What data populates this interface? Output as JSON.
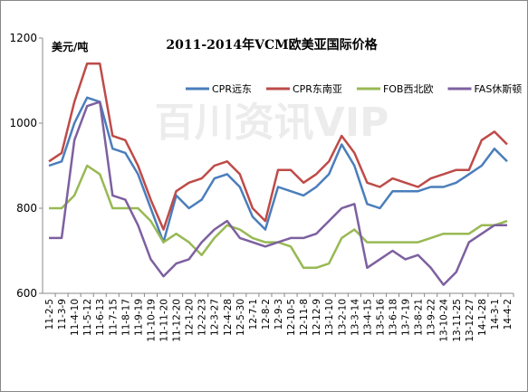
{
  "chart_data": {
    "type": "line",
    "title": "2011-2014年VCM欧美亚国际价格",
    "y_label": "美元/吨",
    "watermark": "百川资讯VIP",
    "categories": [
      "11-2-5",
      "11-3-9",
      "11-4-10",
      "11-5-12",
      "11-6-13",
      "11-7-15",
      "11-8-17",
      "11-9-19",
      "11-10-19",
      "11-11-20",
      "11-12-20",
      "12-1-20",
      "12-2-23",
      "12-3-27",
      "12-4-28",
      "12-5-30",
      "12-7-1",
      "12-8-2",
      "12-9-3",
      "12-10-5",
      "12-11-8",
      "12-12-9",
      "13-1-10",
      "13-2-10",
      "13-3-14",
      "13-4-15",
      "13-5-16",
      "13-6-18",
      "13-7-19",
      "13-8-21",
      "13-9-22",
      "13-10-24",
      "13-11-25",
      "13-12-27",
      "14-1-28",
      "14-3-1",
      "14-4-2"
    ],
    "series": [
      {
        "name": "CPR远东",
        "color": "#4a7ebb",
        "values": [
          900,
          910,
          1000,
          1060,
          1050,
          940,
          930,
          880,
          800,
          720,
          830,
          800,
          820,
          870,
          880,
          850,
          780,
          750,
          850,
          840,
          830,
          850,
          880,
          950,
          900,
          810,
          800,
          840,
          840,
          840,
          850,
          850,
          860,
          880,
          900,
          940,
          910
        ]
      },
      {
        "name": "CPR东南亚",
        "color": "#be4b48",
        "values": [
          910,
          930,
          1050,
          1140,
          1140,
          970,
          960,
          900,
          820,
          750,
          840,
          860,
          870,
          900,
          910,
          880,
          800,
          770,
          890,
          890,
          860,
          880,
          910,
          970,
          930,
          860,
          850,
          870,
          860,
          850,
          870,
          880,
          890,
          890,
          960,
          980,
          950
        ]
      },
      {
        "name": "FOB西北欧",
        "color": "#98b954",
        "values": [
          800,
          800,
          830,
          900,
          880,
          800,
          800,
          800,
          770,
          720,
          740,
          720,
          690,
          730,
          760,
          750,
          730,
          720,
          720,
          710,
          660,
          660,
          670,
          730,
          750,
          720,
          720,
          720,
          720,
          720,
          730,
          740,
          740,
          740,
          760,
          760,
          770
        ]
      },
      {
        "name": "FAS休斯顿",
        "color": "#7d60a0",
        "values": [
          730,
          730,
          960,
          1040,
          1050,
          830,
          820,
          760,
          680,
          640,
          670,
          680,
          720,
          750,
          770,
          730,
          720,
          710,
          720,
          730,
          730,
          740,
          770,
          800,
          810,
          660,
          680,
          700,
          680,
          690,
          660,
          620,
          650,
          720,
          740,
          760,
          760
        ]
      }
    ],
    "ylim": [
      600,
      1200
    ],
    "yticks": [
      600,
      800,
      1000,
      1200
    ],
    "legend": "top"
  }
}
